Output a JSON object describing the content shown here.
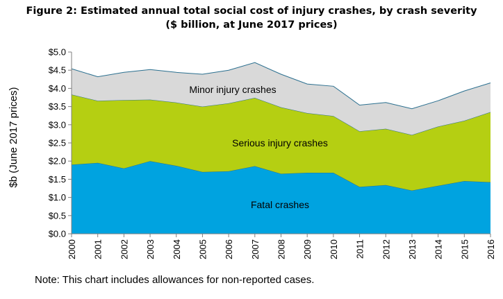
{
  "chart_data": {
    "type": "area",
    "stacked": true,
    "title_line1": "Figure 2: Estimated annual total social cost of injury crashes, by crash severity",
    "title_line2": "($ billion, at June 2017 prices)",
    "ylabel": "$b (June 2017 prices)",
    "xlabel": "",
    "categories": [
      "2000",
      "2001",
      "2002",
      "2003",
      "2004",
      "2005",
      "2006",
      "2007",
      "2008",
      "2009",
      "2010",
      "2011",
      "2012",
      "2013",
      "2014",
      "2015",
      "2016"
    ],
    "ylim": [
      0,
      5
    ],
    "ytick_labels": [
      "$0.0",
      "$0.5",
      "$1.0",
      "$1.5",
      "$2.0",
      "$2.5",
      "$3.0",
      "$3.5",
      "$4.0",
      "$4.5",
      "$5.0"
    ],
    "grid": false,
    "series": [
      {
        "name": "Fatal crashes",
        "color": "#00a3e0",
        "values": [
          1.9,
          1.95,
          1.8,
          2.0,
          1.87,
          1.7,
          1.72,
          1.86,
          1.65,
          1.68,
          1.68,
          1.29,
          1.34,
          1.19,
          1.32,
          1.45,
          1.42
        ]
      },
      {
        "name": "Serious injury crashes",
        "color": "#b5cf12",
        "values": [
          1.93,
          1.71,
          1.88,
          1.69,
          1.74,
          1.8,
          1.87,
          1.88,
          1.83,
          1.64,
          1.56,
          1.53,
          1.55,
          1.53,
          1.63,
          1.66,
          1.93
        ]
      },
      {
        "name": "Minor injury crashes",
        "color": "#d9d9d9",
        "values": [
          0.71,
          0.66,
          0.76,
          0.83,
          0.83,
          0.89,
          0.91,
          0.97,
          0.91,
          0.8,
          0.82,
          0.72,
          0.72,
          0.72,
          0.71,
          0.82,
          0.8
        ]
      }
    ],
    "area_labels": [
      "Minor injury crashes",
      "Serious injury crashes",
      "Fatal crashes"
    ]
  },
  "note": "Note: This chart includes allowances for non-reported cases."
}
